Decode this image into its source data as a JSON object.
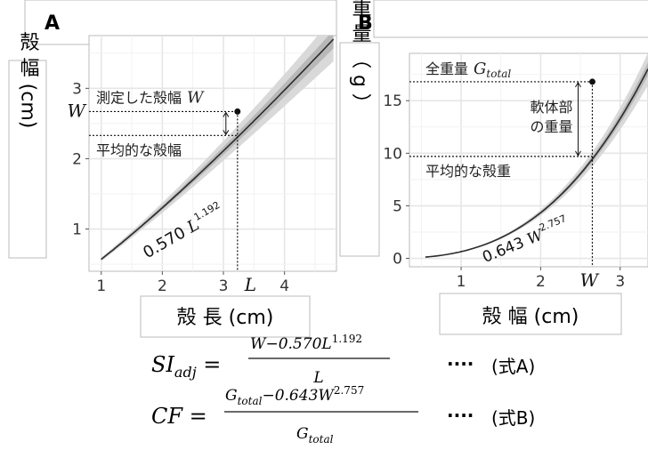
{
  "chart_data": [
    {
      "panel": "A",
      "type": "line",
      "xlabel": "殻 長 (cm)",
      "ylabel": "殻 幅 (cm)",
      "xlim": [
        0.8,
        4.85
      ],
      "ylim": [
        0.4,
        3.75
      ],
      "x_ticks": [
        "1",
        "2",
        "3",
        "4"
      ],
      "y_ticks": [
        "1",
        "2",
        "3"
      ],
      "curve": {
        "coef": 0.57,
        "exp": 1.192,
        "x_from": 1.0,
        "x_to": 4.8
      },
      "curve_label": {
        "coef": "0.570",
        "var": "L",
        "exp": "1.192"
      },
      "observed_point": {
        "x": 3.23,
        "y": 2.67
      },
      "mean_value": 2.33,
      "point_labels": {
        "x": "L",
        "y": "W"
      },
      "annotation_observed": "測定した殻幅",
      "annotation_observed_var": "W",
      "annotation_mean": "平均的な殻幅",
      "grid": true
    },
    {
      "panel": "B",
      "type": "line",
      "xlabel": "殻 幅 (cm)",
      "ylabel": "重 量 （ g ）",
      "xlim": [
        0.35,
        3.35
      ],
      "ylim": [
        -0.8,
        19.5
      ],
      "x_ticks": [
        "1",
        "2",
        "3"
      ],
      "y_ticks": [
        "0",
        "5",
        "10",
        "15"
      ],
      "curve": {
        "coef": 0.643,
        "exp": 2.757,
        "x_from": 0.55,
        "x_to": 3.35
      },
      "curve_label": {
        "coef": "0.643",
        "var": "W",
        "exp": "2.757"
      },
      "observed_point": {
        "x": 2.65,
        "y": 16.8
      },
      "mean_value": 9.7,
      "point_labels": {
        "x": "W"
      },
      "annotation_total": "全重量",
      "annotation_total_var": "G",
      "annotation_total_sub": "total",
      "annotation_soft": [
        "軟体部",
        "の重量"
      ],
      "annotation_mean": "平均的な殻重",
      "grid": true
    }
  ],
  "formulas": {
    "a": {
      "lhs_main": "SI",
      "lhs_sub": "adj",
      "num": "W−0.570L",
      "num_exp": "1.192",
      "den": "L",
      "dots": "····",
      "tag": "(式A)"
    },
    "b": {
      "lhs_main": "CF",
      "num_pre": "G",
      "num_sub": "total",
      "num_mid": "−0.643W",
      "num_exp": "2.757",
      "den_main": "G",
      "den_sub": "total",
      "dots": "····",
      "tag": "(式B)"
    }
  },
  "colors": {
    "band_outer": "#d9d9d9",
    "band_inner": "#b8b8b8",
    "curve": "#2b2b2b",
    "grid_major": "#e6e6e6",
    "grid_minor": "#f2f2f2"
  }
}
